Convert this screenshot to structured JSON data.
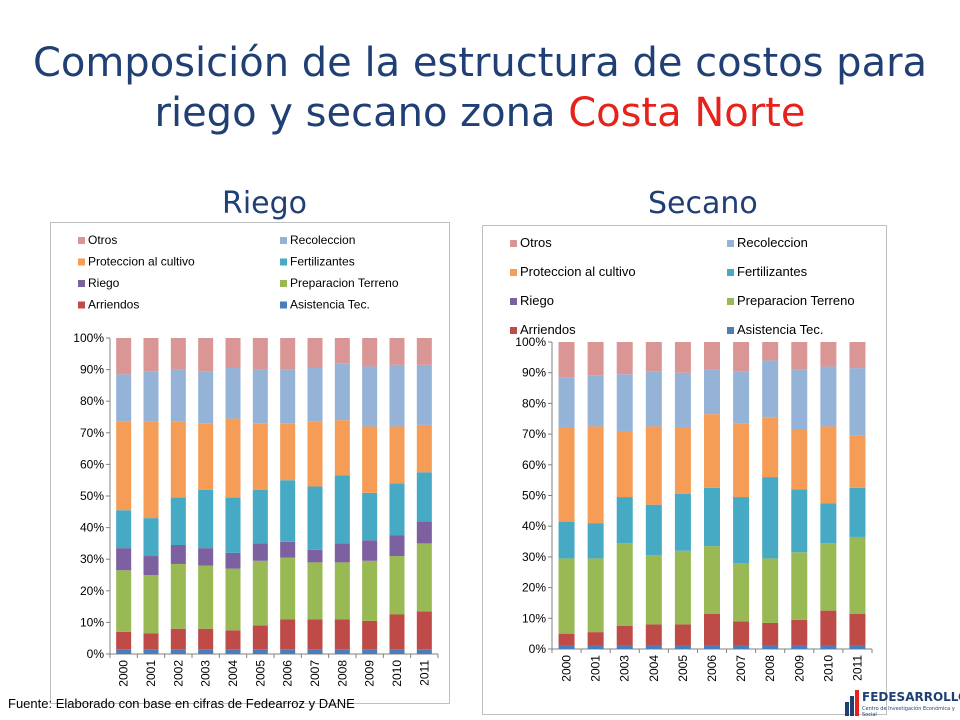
{
  "header": {
    "title_main": "Composición de la estructura de costos para riego y secano zona ",
    "title_accent": "Costa Norte"
  },
  "colors": {
    "title": "#1F3F75",
    "accent": "#E8211B"
  },
  "footer": {
    "source": "Fuente: Elaborado con base en cifras de Fedearroz y DANE",
    "logo_text": "FEDESARROLLO",
    "logo_sub": "Centro de Investigación Económica y Social"
  },
  "chart_data": [
    {
      "type": "bar",
      "stacked": true,
      "percent": true,
      "title": "Riego",
      "categories": [
        "2000",
        "2001",
        "2002",
        "2003",
        "2004",
        "2005",
        "2006",
        "2007",
        "2008",
        "2009",
        "2010",
        "2011"
      ],
      "ylim": [
        0,
        100
      ],
      "yticks": [
        "0%",
        "10%",
        "20%",
        "30%",
        "40%",
        "50%",
        "60%",
        "70%",
        "80%",
        "90%",
        "100%"
      ],
      "legend_position": "top",
      "series": [
        {
          "name": "Asistencia Tec.",
          "color": "#4A7EBB",
          "values": [
            1.5,
            1.5,
            1.5,
            1.5,
            1.5,
            1.5,
            1.5,
            1.5,
            1.5,
            1.5,
            1.5,
            1.5
          ]
        },
        {
          "name": "Arriendos",
          "color": "#BE4B48",
          "values": [
            5.5,
            5,
            6.5,
            6.5,
            6,
            7.5,
            9.5,
            9.5,
            9.5,
            9,
            11,
            12
          ]
        },
        {
          "name": "Preparacion Terreno",
          "color": "#98B954",
          "values": [
            19.5,
            18.5,
            20.5,
            20,
            19.5,
            20.5,
            19.5,
            18,
            18,
            19,
            18.5,
            21.5
          ]
        },
        {
          "name": "Riego",
          "color": "#7D60A0",
          "values": [
            7,
            6,
            6,
            5.5,
            5,
            5.5,
            5,
            4,
            6,
            6.5,
            6.5,
            7
          ]
        },
        {
          "name": "Fertilizantes",
          "color": "#46AAC5",
          "values": [
            12,
            12,
            15,
            18.5,
            17.5,
            17,
            19.5,
            20,
            21.5,
            15,
            16.5,
            15.5
          ]
        },
        {
          "name": "Proteccion al cultivo",
          "color": "#F59D56",
          "values": [
            28,
            30.5,
            24,
            21,
            25,
            21,
            18,
            20.5,
            17.5,
            21,
            18,
            15
          ]
        },
        {
          "name": "Recoleccion",
          "color": "#95B3D7",
          "values": [
            15,
            16,
            16.5,
            16.5,
            16,
            17,
            17,
            17,
            18,
            19,
            19.5,
            19
          ]
        },
        {
          "name": "Otros",
          "color": "#DA9694",
          "values": [
            11.5,
            10.5,
            10,
            10.5,
            9.5,
            10,
            10,
            9.5,
            8,
            9,
            8.5,
            8.5
          ]
        }
      ]
    },
    {
      "type": "bar",
      "stacked": true,
      "percent": true,
      "title": "Secano",
      "categories": [
        "2000",
        "2001",
        "2003",
        "2004",
        "2005",
        "2006",
        "2007",
        "2008",
        "2009",
        "2010",
        "2011"
      ],
      "ylim": [
        0,
        100
      ],
      "yticks": [
        "0%",
        "10%",
        "20%",
        "30%",
        "40%",
        "50%",
        "60%",
        "70%",
        "80%",
        "90%",
        "100%"
      ],
      "legend_position": "top",
      "series": [
        {
          "name": "Asistencia Tec.",
          "color": "#4A7EBB",
          "values": [
            1,
            1,
            1,
            1,
            1,
            1,
            1,
            1,
            1,
            1,
            1
          ]
        },
        {
          "name": "Arriendos",
          "color": "#BE4B48",
          "values": [
            4,
            4.5,
            6.5,
            7,
            7,
            10.5,
            8,
            7.5,
            8.5,
            11.5,
            10.5
          ]
        },
        {
          "name": "Preparacion Terreno",
          "color": "#98B954",
          "values": [
            24.5,
            24,
            27,
            22.5,
            24,
            22,
            19,
            21,
            22,
            22,
            25
          ]
        },
        {
          "name": "Riego",
          "color": "#7D60A0",
          "values": [
            0,
            0,
            0,
            0,
            0,
            0,
            0,
            0,
            0,
            0,
            0
          ]
        },
        {
          "name": "Fertilizantes",
          "color": "#46AAC5",
          "values": [
            12,
            11.5,
            15,
            16.5,
            18.5,
            19,
            21.5,
            26.5,
            20.5,
            13,
            16
          ]
        },
        {
          "name": "Proteccion al cultivo",
          "color": "#F59D56",
          "values": [
            30.5,
            31.5,
            21.5,
            25.5,
            21.5,
            24,
            24,
            19.5,
            19.5,
            25,
            17
          ]
        },
        {
          "name": "Recoleccion",
          "color": "#95B3D7",
          "values": [
            16.5,
            16.5,
            18.5,
            18,
            18,
            14.5,
            17,
            18.5,
            19.5,
            19.5,
            22
          ]
        },
        {
          "name": "Otros",
          "color": "#DA9694",
          "values": [
            11.5,
            11,
            10.5,
            9.5,
            10,
            9,
            9.5,
            6,
            9,
            8,
            8.5
          ]
        }
      ]
    }
  ]
}
